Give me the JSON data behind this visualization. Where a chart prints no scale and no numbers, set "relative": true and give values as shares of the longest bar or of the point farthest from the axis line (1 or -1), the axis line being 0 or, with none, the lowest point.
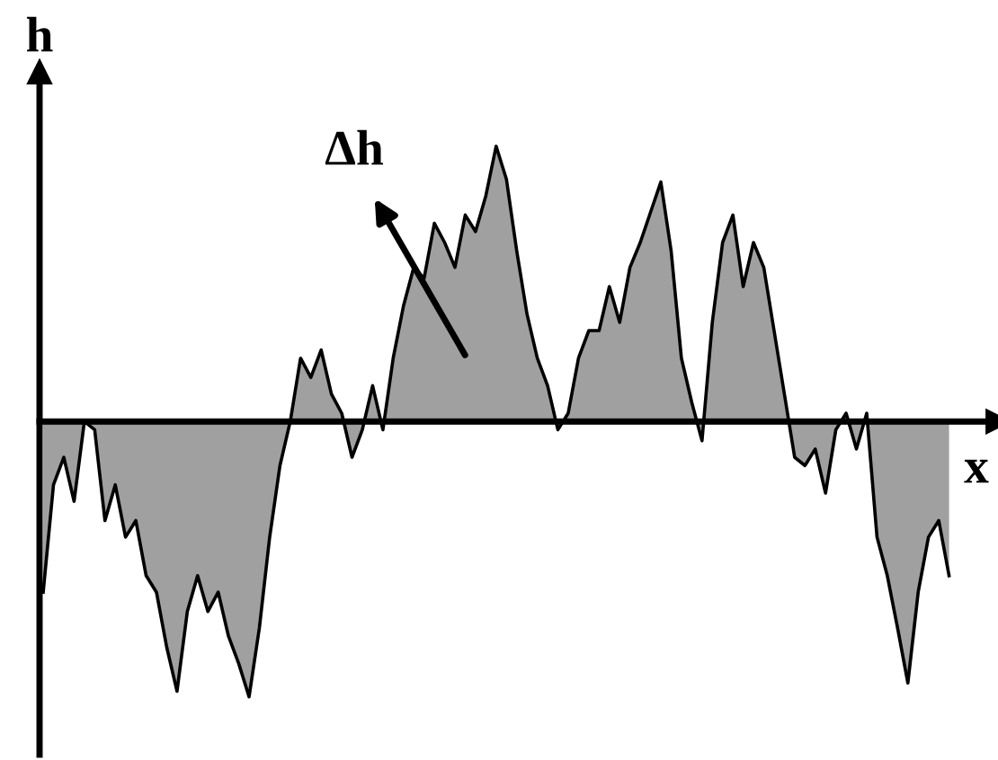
{
  "chart_data": {
    "type": "area",
    "relative": true,
    "xlabel": "x",
    "ylabel": "h",
    "annotations": [
      "Δh"
    ],
    "categories": [
      null,
      null,
      null,
      null,
      null,
      null,
      null,
      null,
      null,
      null,
      null,
      null,
      null,
      null,
      null,
      null,
      null,
      null,
      null,
      null,
      null,
      null,
      null,
      null,
      null,
      null,
      null,
      null,
      null,
      null,
      null,
      null,
      null,
      null,
      null,
      null,
      null,
      null,
      null,
      null,
      null,
      null,
      null,
      null,
      null,
      null,
      null,
      null,
      null,
      null,
      null,
      null,
      null,
      null,
      null,
      null,
      null,
      null,
      null,
      null,
      null,
      null,
      null,
      null,
      null,
      null,
      null,
      null,
      null,
      null,
      null,
      null,
      null,
      null,
      null,
      null,
      null,
      null,
      null,
      null,
      null,
      null,
      null,
      null,
      null,
      null,
      null,
      null,
      null
    ],
    "series": [
      {
        "color": "#a0a0a0",
        "values": [
          -0.62,
          -0.23,
          -0.13,
          -0.29,
          0,
          -0.03,
          -0.36,
          -0.23,
          -0.42,
          -0.36,
          -0.56,
          -0.62,
          -0.82,
          -0.98,
          -0.69,
          -0.56,
          -0.69,
          -0.62,
          -0.78,
          -0.88,
          -1,
          -0.75,
          -0.42,
          -0.16,
          0,
          0.23,
          0.16,
          0.26,
          0.1,
          0.03,
          -0.13,
          -0.03,
          0.13,
          -0.03,
          0.23,
          0.42,
          0.56,
          0.52,
          0.72,
          0.65,
          0.56,
          0.75,
          0.69,
          0.82,
          1,
          0.88,
          0.62,
          0.39,
          0.23,
          0.13,
          -0.03,
          0.03,
          0.23,
          0.33,
          0.33,
          0.49,
          0.36,
          0.56,
          0.65,
          0.76,
          0.87,
          0.62,
          0.23,
          0.07,
          -0.07,
          0.36,
          0.65,
          0.75,
          0.49,
          0.65,
          0.56,
          0.33,
          0.1,
          -0.13,
          -0.16,
          -0.1,
          -0.26,
          -0.03,
          0.03,
          -0.1,
          0.03,
          -0.42,
          -0.56,
          -0.75,
          -0.95,
          -0.62,
          -0.42,
          -0.36,
          -0.56
        ]
      }
    ]
  }
}
